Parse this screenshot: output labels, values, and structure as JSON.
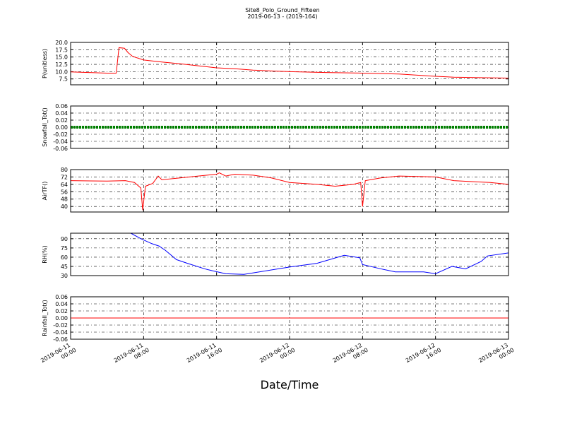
{
  "chart_data": [
    {
      "type": "line",
      "title": "Site8_Polo_Ground_Fifteen",
      "subtitle": "2019-06-13 - (2019-164)",
      "ylabel": "P(unitless)",
      "color": "#ff0000",
      "x": [
        "2019-06-11 00:00",
        "2019-06-11 02:00",
        "2019-06-11 04:00",
        "2019-06-11 05:00",
        "2019-06-11 05:18",
        "2019-06-11 05:54",
        "2019-06-11 06:18",
        "2019-06-11 06:48",
        "2019-06-11 08:00",
        "2019-06-11 10:00",
        "2019-06-11 12:00",
        "2019-06-11 14:00",
        "2019-06-11 16:00",
        "2019-06-11 18:00",
        "2019-06-11 20:00",
        "2019-06-12 00:00",
        "2019-06-12 04:00",
        "2019-06-12 08:00",
        "2019-06-12 12:00",
        "2019-06-12 16:00",
        "2019-06-12 18:00",
        "2019-06-13 00:00"
      ],
      "values": [
        9.9,
        9.7,
        9.5,
        9.5,
        18.2,
        18.0,
        16.5,
        15.2,
        14.0,
        13.3,
        12.7,
        12.0,
        11.3,
        11.0,
        10.5,
        10.0,
        9.7,
        9.5,
        9.2,
        8.4,
        8.1,
        7.8
      ],
      "ylim": [
        5.5,
        20
      ],
      "yticks": [
        {
          "value": 20,
          "label": "20.0"
        },
        17.5,
        {
          "value": 15,
          "label": "15.0"
        },
        12.5,
        {
          "value": 10,
          "label": "10.0"
        },
        7.5
      ],
      "grid": true
    },
    {
      "type": "line",
      "ylabel": "Snowfall_Tot()",
      "color": "#008000",
      "thick": true,
      "x": [
        "2019-06-11 00:00",
        "2019-06-11 08:00",
        "2019-06-11 16:00",
        "2019-06-12 00:00",
        "2019-06-12 08:00",
        "2019-06-12 16:00",
        "2019-06-13 00:00"
      ],
      "values": [
        0,
        0,
        0,
        0,
        0,
        0,
        0
      ],
      "ylim": [
        -0.06,
        0.06
      ],
      "yticks": [
        0.06,
        0.04,
        0.02,
        {
          "value": 0,
          "label": "0.00"
        },
        -0.02,
        -0.04,
        -0.06
      ],
      "grid": true
    },
    {
      "type": "line",
      "ylabel": "AirTF()",
      "color": "#ff0000",
      "x": [
        "2019-06-11 00:00",
        "2019-06-11 04:00",
        "2019-06-11 06:00",
        "2019-06-11 07:00",
        "2019-06-11 07:42",
        "2019-06-11 07:54",
        "2019-06-11 08:12",
        "2019-06-11 09:00",
        "2019-06-11 09:36",
        "2019-06-11 10:00",
        "2019-06-11 12:00",
        "2019-06-11 14:00",
        "2019-06-11 16:00",
        "2019-06-11 16:18",
        "2019-06-11 17:00",
        "2019-06-11 18:00",
        "2019-06-11 20:00",
        "2019-06-11 22:00",
        "2019-06-12 00:00",
        "2019-06-12 03:00",
        "2019-06-12 05:00",
        "2019-06-12 07:00",
        "2019-06-12 07:48",
        "2019-06-12 08:00",
        "2019-06-12 08:18",
        "2019-06-12 10:00",
        "2019-06-12 12:00",
        "2019-06-12 14:00",
        "2019-06-12 16:00",
        "2019-06-12 17:00",
        "2019-06-12 18:00",
        "2019-06-12 20:00",
        "2019-06-12 22:00",
        "2019-06-13 00:00"
      ],
      "values": [
        68,
        67.5,
        68,
        66,
        60,
        36,
        62,
        65,
        73,
        69,
        71,
        73,
        75,
        76.5,
        73,
        75,
        74,
        71,
        66,
        64,
        62,
        64,
        66,
        40,
        68,
        71,
        73,
        72.5,
        72,
        70,
        68,
        67,
        66,
        64
      ],
      "ylim": [
        34,
        80
      ],
      "yticks": [
        80,
        72,
        64,
        56,
        48,
        40
      ],
      "grid": true
    },
    {
      "type": "line",
      "ylabel": "RH(%)",
      "color": "#0000ff",
      "x": [
        "2019-06-11 06:36",
        "2019-06-11 07:42",
        "2019-06-11 08:54",
        "2019-06-11 09:42",
        "2019-06-11 10:24",
        "2019-06-11 11:36",
        "2019-06-11 12:48",
        "2019-06-11 14:42",
        "2019-06-11 15:30",
        "2019-06-11 17:00",
        "2019-06-11 19:00",
        "2019-06-12 00:00",
        "2019-06-12 03:00",
        "2019-06-12 06:00",
        "2019-06-12 07:42",
        "2019-06-12 08:00",
        "2019-06-12 10:00",
        "2019-06-12 11:36",
        "2019-06-12 14:42",
        "2019-06-12 16:00",
        "2019-06-12 17:48",
        "2019-06-12 19:18",
        "2019-06-12 21:00",
        "2019-06-12 21:42",
        "2019-06-13 00:00"
      ],
      "values": [
        99,
        90,
        82,
        78,
        71,
        56,
        50,
        41,
        38,
        33,
        32,
        44,
        50,
        63,
        59,
        48,
        41,
        36,
        36,
        33,
        45,
        41,
        53,
        62,
        67
      ],
      "ylim": [
        30,
        99
      ],
      "yticks": [
        90,
        75,
        60,
        45,
        30
      ],
      "grid": true
    },
    {
      "type": "line",
      "ylabel": "Rainfall_Tot()",
      "xlabel": "Date/Time",
      "color": "#ff0000",
      "x": [
        "2019-06-11 00:00",
        "2019-06-11 08:00",
        "2019-06-11 16:00",
        "2019-06-12 00:00",
        "2019-06-12 08:00",
        "2019-06-12 16:00",
        "2019-06-13 00:00"
      ],
      "values": [
        0,
        0,
        0,
        0,
        0,
        0,
        0
      ],
      "ylim": [
        -0.06,
        0.06
      ],
      "yticks": [
        0.06,
        0.04,
        0.02,
        {
          "value": 0,
          "label": "0.00"
        },
        -0.02,
        -0.04,
        -0.06
      ],
      "grid": true,
      "xlim": [
        "2019-06-11 00:00",
        "2019-06-13 00:00"
      ],
      "xticks": [
        {
          "value": "2019-06-11 00:00",
          "label": "2019-06-11\n00:00"
        },
        {
          "value": "2019-06-11 08:00",
          "label": "2019-06-11\n08:00"
        },
        {
          "value": "2019-06-11 16:00",
          "label": "2019-06-11\n16:00"
        },
        {
          "value": "2019-06-12 00:00",
          "label": "2019-06-12\n00:00"
        },
        {
          "value": "2019-06-12 08:00",
          "label": "2019-06-12\n08:00"
        },
        {
          "value": "2019-06-12 16:00",
          "label": "2019-06-12\n16:00"
        },
        {
          "value": "2019-06-13 00:00",
          "label": "2019-06-13\n00:00"
        }
      ]
    }
  ]
}
